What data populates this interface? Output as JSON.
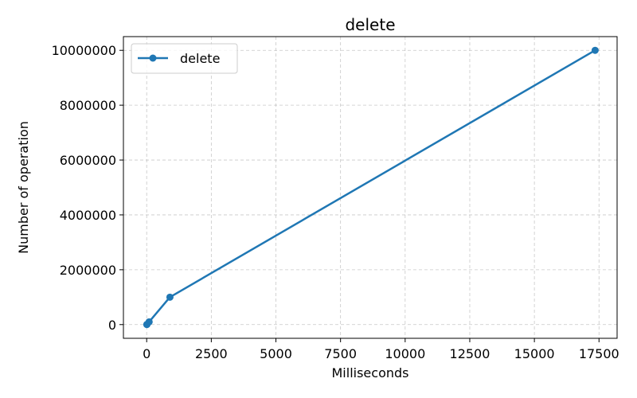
{
  "chart_data": {
    "type": "line",
    "title": "delete",
    "xlabel": "Milliseconds",
    "ylabel": "Number of operation",
    "xlim": [
      -900,
      18200
    ],
    "ylim": [
      -500000,
      10500000
    ],
    "xticks": [
      0,
      2500,
      5000,
      7500,
      10000,
      12500,
      15000,
      17500
    ],
    "xtick_labels": [
      "0",
      "2500",
      "5000",
      "7500",
      "10000",
      "12500",
      "15000",
      "17500"
    ],
    "yticks": [
      0,
      2000000,
      4000000,
      6000000,
      8000000,
      10000000
    ],
    "ytick_labels": [
      "0",
      "2000000",
      "4000000",
      "6000000",
      "8000000",
      "10000000"
    ],
    "grid": true,
    "legend_position": "top-left",
    "series": [
      {
        "name": "delete",
        "color": "#1f77b4",
        "marker": "circle",
        "x": [
          5,
          15,
          95,
          900,
          17350
        ],
        "y": [
          1000,
          10000,
          100000,
          1000000,
          10000000
        ]
      }
    ]
  }
}
